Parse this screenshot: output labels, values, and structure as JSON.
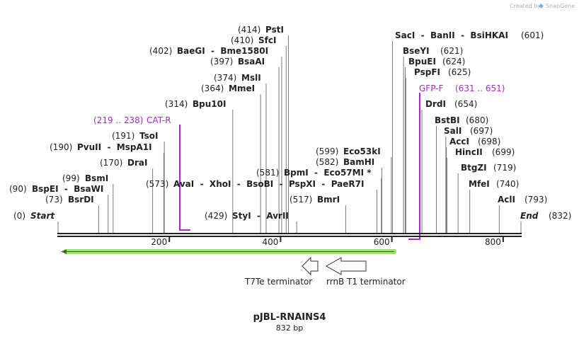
{
  "credit": {
    "created_by": "Created by",
    "brand": "SnapGene"
  },
  "map": {
    "title": "pJBL-RNAINS4",
    "length_label": "832 bp",
    "total_bp": 832,
    "ticks": [
      200,
      400,
      600,
      800
    ],
    "colors": {
      "ink": "#222222",
      "feature_purple": "#a32ec6",
      "feature_green": "#9be36a",
      "line_grey": "#777777"
    }
  },
  "sites": [
    {
      "pos": 0,
      "display": "(0)",
      "name": "Start",
      "kind": "origin"
    },
    {
      "pos": 73,
      "display": "(73)",
      "name": "BsrDI"
    },
    {
      "pos": 90,
      "display": "(90)",
      "name": "BspEI  -  BsaWI"
    },
    {
      "pos": 99,
      "display": "(99)",
      "name": "BsmI"
    },
    {
      "pos": 170,
      "display": "(170)",
      "name": "DraI"
    },
    {
      "pos": 190,
      "display": "(190)",
      "name": "PvuII  -  MspA1I"
    },
    {
      "pos": 191,
      "display": "(191)",
      "name": "TsoI"
    },
    {
      "pos": 314,
      "display": "(314)",
      "name": "Bpu10I"
    },
    {
      "pos": 364,
      "display": "(364)",
      "name": "MmeI"
    },
    {
      "pos": 374,
      "display": "(374)",
      "name": "MslI"
    },
    {
      "pos": 397,
      "display": "(397)",
      "name": "BsaAI"
    },
    {
      "pos": 402,
      "display": "(402)",
      "name": "BaeGI  -  Bme1580I"
    },
    {
      "pos": 410,
      "display": "(410)",
      "name": "SfcI"
    },
    {
      "pos": 414,
      "display": "(414)",
      "name": "PstI"
    },
    {
      "pos": 429,
      "display": "(429)",
      "name": "StyI  -  AvrII"
    },
    {
      "pos": 517,
      "display": "(517)",
      "name": "BmrI"
    },
    {
      "pos": 573,
      "display": "(573)",
      "name": "AvaI  -  XhoI  -  BsoBI  -  PspXI  -  PaeR7I"
    },
    {
      "pos": 581,
      "display": "(581)",
      "name": "BpmI  -  Eco57MI *"
    },
    {
      "pos": 582,
      "display": "(582)",
      "name": "BamHI"
    },
    {
      "pos": 599,
      "display": "(599)",
      "name": "Eco53kI"
    },
    {
      "pos": 601,
      "display": "(601)",
      "name": "SacI  -  BanII  -  BsiHKAI"
    },
    {
      "pos": 621,
      "display": "(621)",
      "name": "BseYI"
    },
    {
      "pos": 624,
      "display": "(624)",
      "name": "BpuEI"
    },
    {
      "pos": 625,
      "display": "(625)",
      "name": "PspFI"
    },
    {
      "pos": 654,
      "display": "(654)",
      "name": "DrdI"
    },
    {
      "pos": 680,
      "display": "(680)",
      "name": "BstBI"
    },
    {
      "pos": 697,
      "display": "(697)",
      "name": "SalI"
    },
    {
      "pos": 698,
      "display": "(698)",
      "name": "AccI"
    },
    {
      "pos": 699,
      "display": "(699)",
      "name": "HincII"
    },
    {
      "pos": 719,
      "display": "(719)",
      "name": "BtgZI"
    },
    {
      "pos": 740,
      "display": "(740)",
      "name": "MfeI"
    },
    {
      "pos": 793,
      "display": "(793)",
      "name": "AclI"
    },
    {
      "pos": 832,
      "display": "(832)",
      "name": "End",
      "kind": "origin"
    }
  ],
  "primers": [
    {
      "name": "CAT-R",
      "range": "(219 .. 238)"
    },
    {
      "name": "GFP-F",
      "range": "(631 .. 651)"
    }
  ],
  "features": [
    {
      "name": "T7Te terminator",
      "direction": "reverse"
    },
    {
      "name": "rrnB T1 terminator",
      "direction": "reverse"
    }
  ]
}
